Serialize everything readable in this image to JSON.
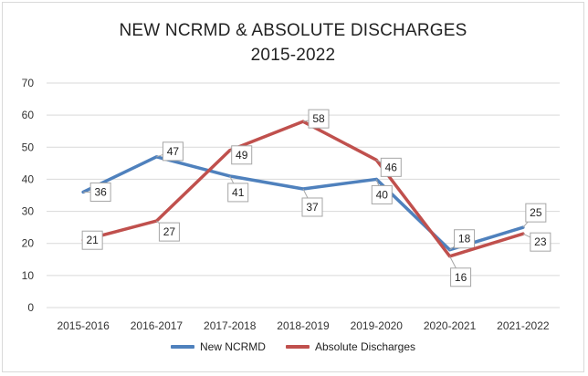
{
  "chart_data": {
    "type": "line",
    "title_line1": "NEW NCRMD & ABSOLUTE DISCHARGES",
    "title_line2": "2015-2022",
    "categories": [
      "2015-2016",
      "2016-2017",
      "2017-2018",
      "2018-2019",
      "2019-2020",
      "2020-2021",
      "2021-2022"
    ],
    "series": [
      {
        "name": "New NCRMD",
        "color": "#4F81BD",
        "values": [
          36,
          47,
          41,
          37,
          40,
          18,
          25
        ]
      },
      {
        "name": "Absolute Discharges",
        "color": "#C0504D",
        "values": [
          21,
          27,
          49,
          58,
          46,
          16,
          23
        ]
      }
    ],
    "ylim": [
      0,
      70
    ],
    "yticks": [
      0,
      10,
      20,
      30,
      40,
      50,
      60,
      70
    ],
    "grid": true,
    "legend_position": "bottom"
  }
}
